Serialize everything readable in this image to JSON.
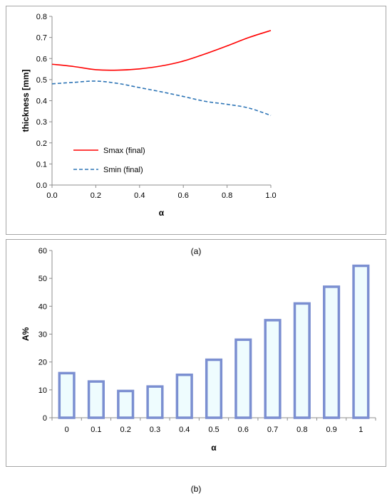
{
  "panel_labels": {
    "a": "(a)",
    "b": "(b)"
  },
  "chart_data": [
    {
      "type": "line",
      "title": "",
      "xlabel": "α",
      "ylabel": "thickness [mm]",
      "xlim": [
        0.0,
        1.0
      ],
      "ylim": [
        0.0,
        0.8
      ],
      "xticks": [
        "0.0",
        "0.2",
        "0.4",
        "0.6",
        "0.8",
        "1.0"
      ],
      "yticks": [
        "0.0",
        "0.1",
        "0.2",
        "0.3",
        "0.4",
        "0.5",
        "0.6",
        "0.7",
        "0.8"
      ],
      "grid": false,
      "legend": "bottom-left",
      "x": [
        0.0,
        0.1,
        0.2,
        0.3,
        0.4,
        0.5,
        0.6,
        0.7,
        0.8,
        0.9,
        1.0
      ],
      "series": [
        {
          "name": "Smax (final)",
          "color": "#ff0000",
          "style": "solid",
          "values": [
            0.573,
            0.562,
            0.547,
            0.545,
            0.551,
            0.565,
            0.588,
            0.622,
            0.66,
            0.7,
            0.733
          ]
        },
        {
          "name": "Smin (final)",
          "color": "#2e75b6",
          "style": "dashed",
          "values": [
            0.48,
            0.487,
            0.493,
            0.482,
            0.462,
            0.442,
            0.42,
            0.397,
            0.383,
            0.365,
            0.33
          ]
        }
      ]
    },
    {
      "type": "bar",
      "title": "",
      "xlabel": "α",
      "ylabel": "A%",
      "ylim": [
        0,
        60
      ],
      "yticks": [
        "0",
        "10",
        "20",
        "30",
        "40",
        "50",
        "60"
      ],
      "grid": false,
      "bar_edge_color": "#7b8fd1",
      "bar_fill_color": "#eefcfe",
      "categories": [
        "0",
        "0.1",
        "0.2",
        "0.3",
        "0.4",
        "0.5",
        "0.6",
        "0.7",
        "0.8",
        "0.9",
        "1"
      ],
      "values": [
        16,
        13,
        9.6,
        11.2,
        15.4,
        20.8,
        28,
        35,
        41,
        47,
        54.5
      ]
    }
  ]
}
